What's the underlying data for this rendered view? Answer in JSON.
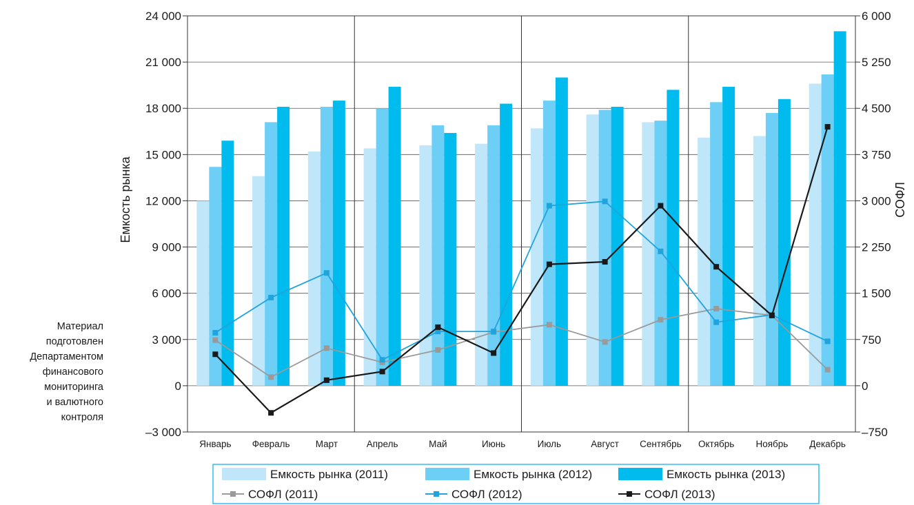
{
  "chart_data": {
    "type": "bar",
    "title": "",
    "categories": [
      "Январь",
      "Февраль",
      "Март",
      "Апрель",
      "Май",
      "Июнь",
      "Июль",
      "Август",
      "Сентябрь",
      "Октябрь",
      "Ноябрь",
      "Декабрь"
    ],
    "ylabel": "Емкость рынка",
    "ylabel_right": "СОФЛ",
    "ylim": [
      -3000,
      24000
    ],
    "ylim_right": [
      -750,
      6000
    ],
    "y_ticks": [
      "–3 000",
      "0",
      "3 000",
      "6 000",
      "9 000",
      "12 000",
      "15 000",
      "18 000",
      "21 000",
      "24 000"
    ],
    "y_ticks_right": [
      "–750",
      "0",
      "750",
      "1 500",
      "2 250",
      "3 000",
      "3 750",
      "4 500",
      "5 250",
      "6 000"
    ],
    "grid": true,
    "legend_position": "bottom",
    "bar_series": [
      {
        "name": "Емкость рынка (2011)",
        "color": "#bfe6f9",
        "values": [
          12000,
          13600,
          15200,
          15400,
          15600,
          15700,
          16700,
          17600,
          17100,
          16100,
          16200,
          19600
        ]
      },
      {
        "name": "Емкость рынка (2012)",
        "color": "#6dcff6",
        "values": [
          14200,
          17100,
          18100,
          18000,
          16900,
          16900,
          18500,
          17900,
          17200,
          18400,
          17700,
          20200
        ]
      },
      {
        "name": "Емкость рынка (2013)",
        "color": "#00bbee",
        "values": [
          15900,
          18100,
          18500,
          19400,
          16400,
          18300,
          20000,
          18100,
          19200,
          19400,
          18600,
          23000
        ]
      }
    ],
    "line_series": [
      {
        "name": "СОФЛ (2011)",
        "color": "#9a9a9a",
        "values": [
          740,
          140,
          610,
          380,
          580,
          870,
          990,
          710,
          1070,
          1250,
          1140,
          260
        ]
      },
      {
        "name": "СОФЛ (2012)",
        "color": "#1fa4dd",
        "values": [
          860,
          1430,
          1830,
          420,
          880,
          880,
          2920,
          2990,
          2180,
          1030,
          1150,
          720
        ]
      },
      {
        "name": "СОФЛ (2013)",
        "color": "#1a1a1a",
        "values": [
          510,
          -440,
          90,
          230,
          950,
          530,
          1970,
          2010,
          2920,
          1930,
          1140,
          4200
        ]
      }
    ]
  },
  "note": [
    "Материал",
    "подготовлен",
    "Департаментом",
    "финансового",
    "мониторинга",
    "и валютного",
    "контроля"
  ]
}
